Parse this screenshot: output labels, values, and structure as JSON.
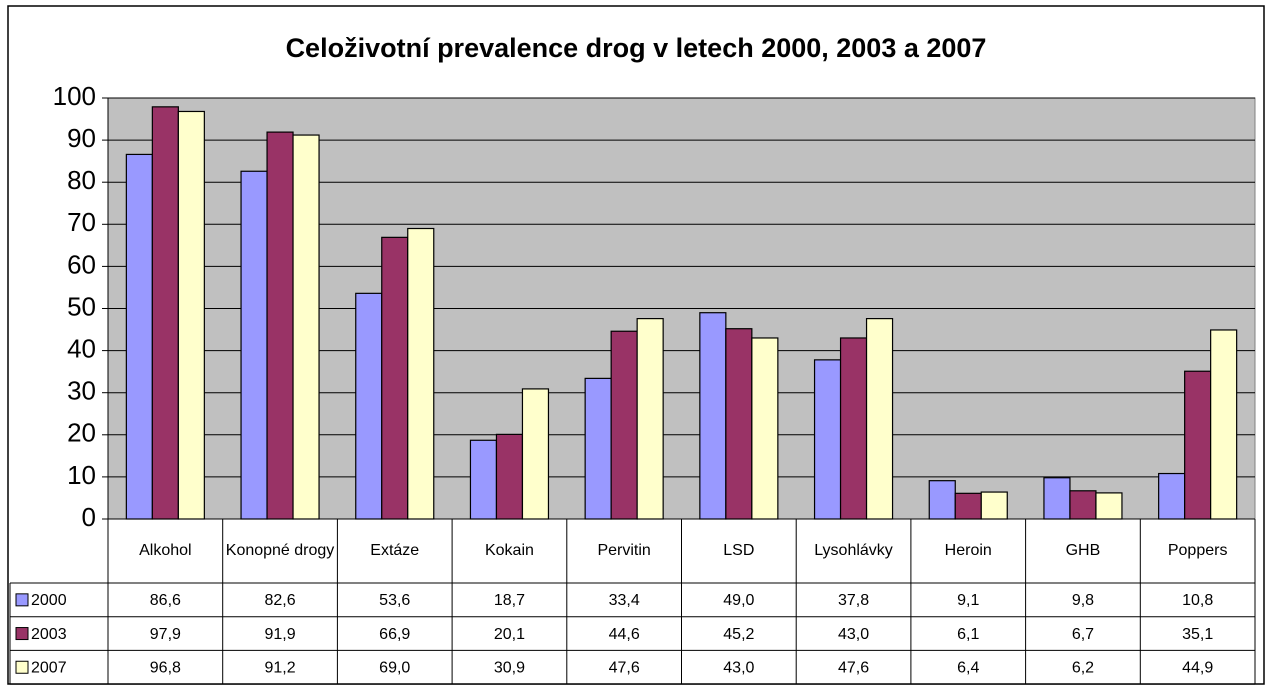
{
  "chart_data": {
    "type": "bar",
    "title": "Celoživotní prevalence drog v letech 2000, 2003 a 2007",
    "categories": [
      "Alkohol",
      "Konopné drogy",
      "Extáze",
      "Kokain",
      "Pervitin",
      "LSD",
      "Lysohlávky",
      "Heroin",
      "GHB",
      "Poppers"
    ],
    "series": [
      {
        "name": "2000",
        "color": "#9999ff",
        "values": [
          86.6,
          82.6,
          53.6,
          18.7,
          33.4,
          49.0,
          37.8,
          9.1,
          9.8,
          10.8
        ],
        "value_labels": [
          "86,6",
          "82,6",
          "53,6",
          "18,7",
          "33,4",
          "49,0",
          "37,8",
          "9,1",
          "9,8",
          "10,8"
        ]
      },
      {
        "name": "2003",
        "color": "#993366",
        "values": [
          97.9,
          91.9,
          66.9,
          20.1,
          44.6,
          45.2,
          43.0,
          6.1,
          6.7,
          35.1
        ],
        "value_labels": [
          "97,9",
          "91,9",
          "66,9",
          "20,1",
          "44,6",
          "45,2",
          "43,0",
          "6,1",
          "6,7",
          "35,1"
        ]
      },
      {
        "name": "2007",
        "color": "#ffffcc",
        "values": [
          96.8,
          91.2,
          69.0,
          30.9,
          47.6,
          43.0,
          47.6,
          6.4,
          6.2,
          44.9
        ],
        "value_labels": [
          "96,8",
          "91,2",
          "69,0",
          "30,9",
          "47,6",
          "43,0",
          "47,6",
          "6,4",
          "6,2",
          "44,9"
        ]
      }
    ],
    "ylim": [
      0,
      100
    ],
    "yticks": [
      0,
      10,
      20,
      30,
      40,
      50,
      60,
      70,
      80,
      90,
      100
    ],
    "grid": true
  }
}
